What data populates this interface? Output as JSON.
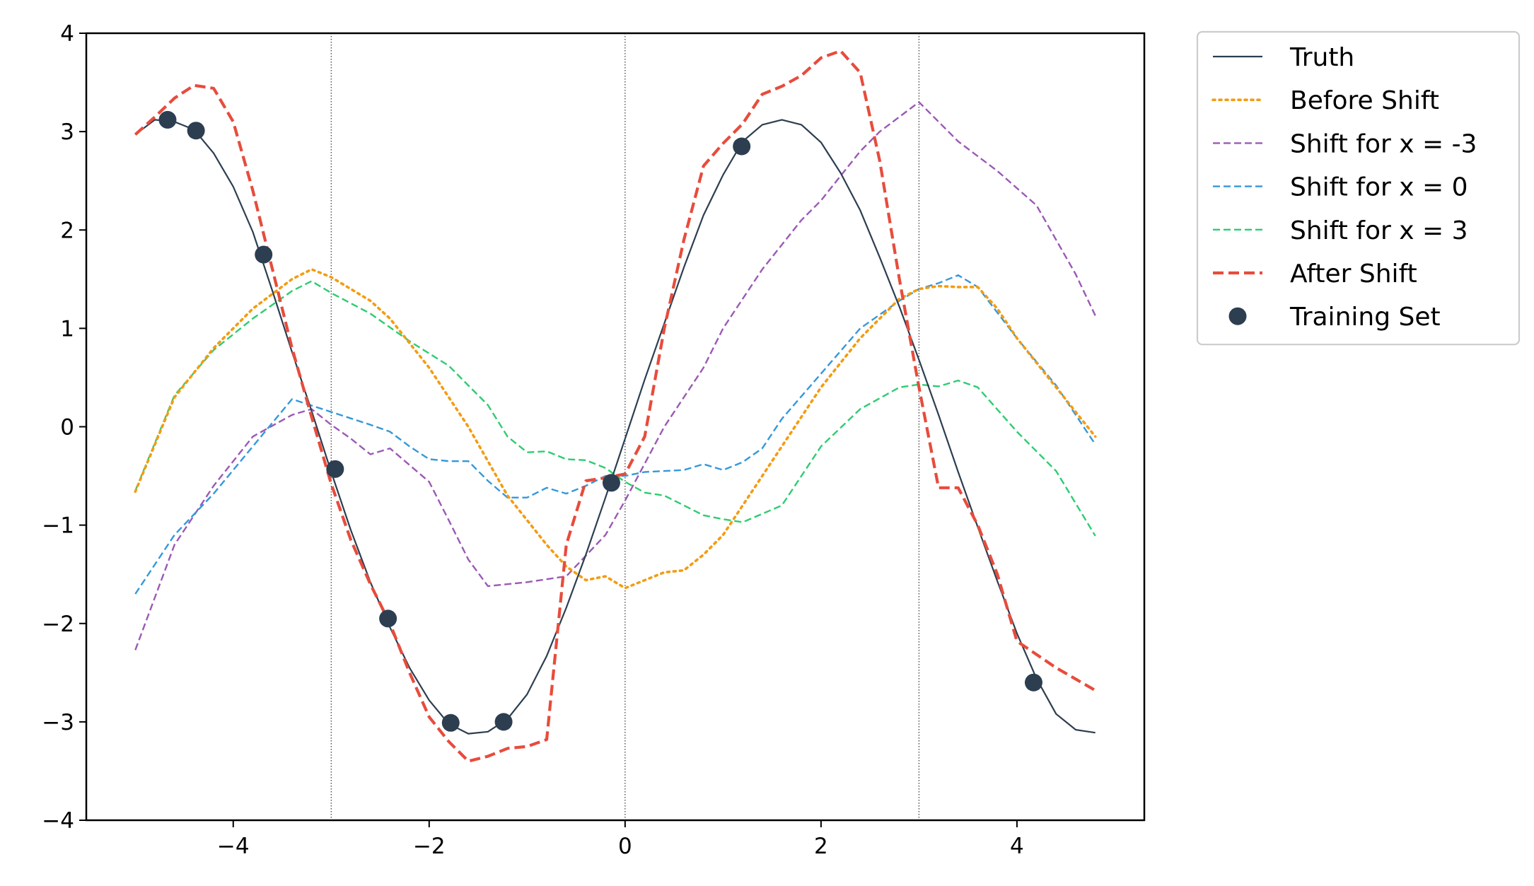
{
  "chart_data": {
    "type": "line",
    "title": "",
    "xlabel": "",
    "ylabel": "",
    "xlim": [
      -5.5,
      5.3
    ],
    "ylim": [
      -4,
      4
    ],
    "xticks": [
      -4,
      -2,
      0,
      2,
      4
    ],
    "yticks": [
      -4,
      -3,
      -2,
      -1,
      0,
      1,
      2,
      3,
      4
    ],
    "xtick_labels": [
      "−4",
      "−2",
      "0",
      "2",
      "4"
    ],
    "ytick_labels": [
      "−4",
      "−3",
      "−2",
      "−1",
      "0",
      "1",
      "2",
      "3",
      "4"
    ],
    "vlines": [
      -3,
      0,
      3
    ],
    "grid": false,
    "legend_position": "outside-right-top",
    "series": [
      {
        "name": "Truth",
        "kind": "line",
        "color": "#2c3e50",
        "dash": "solid",
        "x": [
          -5.0,
          -4.8,
          -4.6,
          -4.4,
          -4.2,
          -4.0,
          -3.8,
          -3.6,
          -3.4,
          -3.2,
          -3.0,
          -2.8,
          -2.6,
          -2.4,
          -2.2,
          -2.0,
          -1.8,
          -1.6,
          -1.4,
          -1.2,
          -1.0,
          -0.8,
          -0.6,
          -0.4,
          -0.2,
          0.0,
          0.2,
          0.4,
          0.6,
          0.8,
          1.0,
          1.2,
          1.4,
          1.6,
          1.8,
          2.0,
          2.2,
          2.4,
          2.6,
          2.8,
          3.0,
          3.2,
          3.4,
          3.6,
          3.8,
          4.0,
          4.2,
          4.4,
          4.6,
          4.8
        ],
        "y": [
          2.97,
          3.12,
          3.1,
          3.02,
          2.78,
          2.44,
          1.98,
          1.38,
          0.76,
          0.16,
          -0.46,
          -1.05,
          -1.58,
          -2.04,
          -2.45,
          -2.78,
          -3.02,
          -3.12,
          -3.1,
          -2.97,
          -2.72,
          -2.33,
          -1.84,
          -1.3,
          -0.72,
          -0.12,
          0.48,
          1.05,
          1.62,
          2.15,
          2.56,
          2.9,
          3.07,
          3.12,
          3.07,
          2.89,
          2.58,
          2.2,
          1.72,
          1.22,
          0.68,
          0.12,
          -0.46,
          -1.02,
          -1.57,
          -2.1,
          -2.56,
          -2.92,
          -3.08,
          -3.11
        ]
      },
      {
        "name": "Before Shift",
        "kind": "line",
        "color": "#f39c12",
        "dash": "dotted",
        "x": [
          -5.0,
          -4.6,
          -4.2,
          -3.8,
          -3.4,
          -3.2,
          -3.0,
          -2.6,
          -2.4,
          -2.0,
          -1.6,
          -1.2,
          -1.0,
          -0.8,
          -0.6,
          -0.4,
          -0.2,
          0.0,
          0.2,
          0.4,
          0.6,
          0.8,
          1.0,
          1.2,
          1.4,
          1.6,
          2.0,
          2.4,
          2.8,
          3.0,
          3.2,
          3.4,
          3.6,
          3.8,
          4.0,
          4.4,
          4.8
        ],
        "y": [
          -0.66,
          0.3,
          0.8,
          1.2,
          1.5,
          1.6,
          1.52,
          1.28,
          1.1,
          0.6,
          0.0,
          -0.7,
          -0.95,
          -1.2,
          -1.42,
          -1.56,
          -1.52,
          -1.64,
          -1.56,
          -1.48,
          -1.46,
          -1.3,
          -1.1,
          -0.8,
          -0.5,
          -0.2,
          0.4,
          0.9,
          1.3,
          1.4,
          1.43,
          1.42,
          1.42,
          1.2,
          0.9,
          0.4,
          -0.1
        ]
      },
      {
        "name": "Shift for x = -3",
        "kind": "line",
        "color": "#9b59b6",
        "dash": "dashed",
        "x": [
          -5.0,
          -4.6,
          -4.2,
          -3.8,
          -3.4,
          -3.2,
          -3.0,
          -2.8,
          -2.6,
          -2.4,
          -2.0,
          -1.8,
          -1.6,
          -1.4,
          -1.0,
          -0.6,
          -0.2,
          0.0,
          0.4,
          0.8,
          1.0,
          1.4,
          1.8,
          2.0,
          2.2,
          2.4,
          2.6,
          3.0,
          3.4,
          3.8,
          4.2,
          4.6,
          4.8
        ],
        "y": [
          -2.27,
          -1.2,
          -0.6,
          -0.1,
          0.12,
          0.18,
          0.02,
          -0.12,
          -0.28,
          -0.22,
          -0.56,
          -0.95,
          -1.35,
          -1.62,
          -1.58,
          -1.52,
          -1.1,
          -0.75,
          0.0,
          0.6,
          1.0,
          1.6,
          2.1,
          2.3,
          2.55,
          2.8,
          3.0,
          3.3,
          2.9,
          2.6,
          2.25,
          1.55,
          1.13
        ]
      },
      {
        "name": "Shift for x = 0",
        "kind": "line",
        "color": "#3498db",
        "dash": "dashed",
        "x": [
          -5.0,
          -4.6,
          -4.2,
          -3.8,
          -3.4,
          -3.0,
          -2.6,
          -2.4,
          -2.2,
          -2.0,
          -1.8,
          -1.6,
          -1.4,
          -1.2,
          -1.0,
          -0.8,
          -0.6,
          -0.4,
          -0.2,
          0.0,
          0.2,
          0.4,
          0.6,
          0.8,
          1.0,
          1.2,
          1.4,
          1.6,
          2.0,
          2.4,
          2.8,
          3.0,
          3.2,
          3.4,
          3.6,
          4.0,
          4.4,
          4.8
        ],
        "y": [
          -1.7,
          -1.1,
          -0.68,
          -0.2,
          0.28,
          0.15,
          0.02,
          -0.05,
          -0.2,
          -0.33,
          -0.35,
          -0.35,
          -0.55,
          -0.72,
          -0.72,
          -0.62,
          -0.68,
          -0.6,
          -0.5,
          -0.5,
          -0.46,
          -0.45,
          -0.44,
          -0.38,
          -0.44,
          -0.36,
          -0.22,
          0.08,
          0.54,
          1.0,
          1.28,
          1.4,
          1.46,
          1.54,
          1.42,
          0.9,
          0.42,
          -0.18
        ]
      },
      {
        "name": "Shift for x = 3",
        "kind": "line",
        "color": "#2ecc71",
        "dash": "dashed",
        "x": [
          -5.0,
          -4.6,
          -4.2,
          -3.8,
          -3.4,
          -3.2,
          -3.0,
          -2.6,
          -2.2,
          -1.8,
          -1.6,
          -1.4,
          -1.2,
          -1.0,
          -0.8,
          -0.6,
          -0.4,
          -0.2,
          0.0,
          0.2,
          0.4,
          0.6,
          0.8,
          1.0,
          1.2,
          1.6,
          2.0,
          2.4,
          2.8,
          3.0,
          3.2,
          3.4,
          3.6,
          4.0,
          4.4,
          4.8
        ],
        "y": [
          -0.65,
          0.32,
          0.78,
          1.1,
          1.38,
          1.48,
          1.36,
          1.15,
          0.87,
          0.62,
          0.42,
          0.22,
          -0.1,
          -0.26,
          -0.25,
          -0.33,
          -0.34,
          -0.42,
          -0.56,
          -0.67,
          -0.7,
          -0.8,
          -0.9,
          -0.94,
          -0.97,
          -0.8,
          -0.2,
          0.18,
          0.4,
          0.43,
          0.41,
          0.47,
          0.4,
          -0.05,
          -0.45,
          -1.11
        ]
      },
      {
        "name": "After Shift",
        "kind": "line",
        "color": "#e74c3c",
        "dash": "bold-dashed",
        "x": [
          -5.0,
          -4.8,
          -4.6,
          -4.4,
          -4.2,
          -4.0,
          -3.8,
          -3.6,
          -3.4,
          -3.2,
          -3.0,
          -2.8,
          -2.6,
          -2.4,
          -2.2,
          -2.0,
          -1.8,
          -1.6,
          -1.4,
          -1.2,
          -1.0,
          -0.8,
          -0.6,
          -0.4,
          -0.2,
          0.0,
          0.2,
          0.4,
          0.6,
          0.8,
          1.0,
          1.2,
          1.4,
          1.6,
          1.8,
          2.0,
          2.2,
          2.4,
          2.6,
          2.8,
          3.0,
          3.2,
          3.4,
          3.6,
          3.8,
          4.0,
          4.4,
          4.8
        ],
        "y": [
          2.97,
          3.15,
          3.34,
          3.47,
          3.44,
          3.1,
          2.4,
          1.6,
          0.8,
          0.1,
          -0.58,
          -1.15,
          -1.6,
          -2.0,
          -2.5,
          -2.95,
          -3.2,
          -3.4,
          -3.35,
          -3.27,
          -3.25,
          -3.18,
          -1.2,
          -0.55,
          -0.52,
          -0.48,
          -0.1,
          1.0,
          1.9,
          2.65,
          2.88,
          3.08,
          3.38,
          3.46,
          3.57,
          3.75,
          3.82,
          3.6,
          2.7,
          1.5,
          0.4,
          -0.62,
          -0.62,
          -1.0,
          -1.5,
          -2.18,
          -2.45,
          -2.68
        ]
      },
      {
        "name": "Training Set",
        "kind": "scatter",
        "color": "#2c3e50",
        "x": [
          -4.67,
          -4.38,
          -3.69,
          -2.96,
          -2.42,
          -1.78,
          -1.24,
          -0.14,
          1.19,
          4.17
        ],
        "y": [
          3.12,
          3.01,
          1.75,
          -0.43,
          -1.95,
          -3.01,
          -3.0,
          -0.57,
          2.85,
          -2.6
        ]
      }
    ]
  }
}
